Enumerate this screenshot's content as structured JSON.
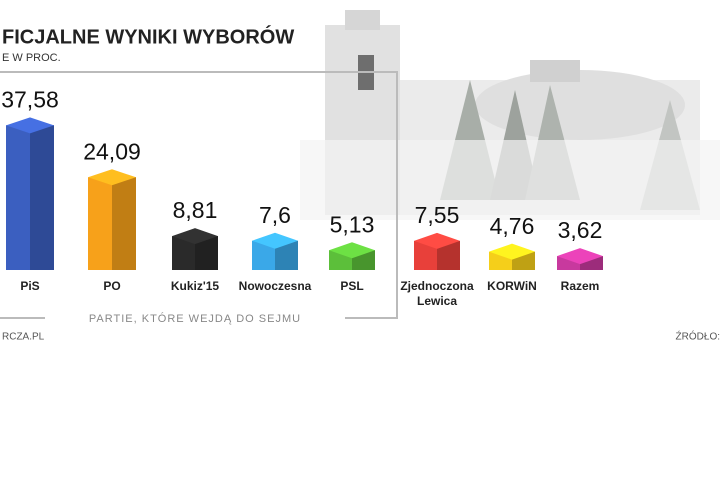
{
  "chart_data": {
    "type": "bar3d",
    "title": "FICJALNE WYNIKI WYBORÓW",
    "subtitle": "E W PROC.",
    "group_label": "PARTIE, KTÓRE WEJDĄ DO SEJMU",
    "source_left": "RCZA.PL",
    "source_right": "ŹRÓDŁO:",
    "categories": [
      "PiS",
      "PO",
      "Kukiz'15",
      "Nowoczesna",
      "PSL",
      "Zjednoczona Lewica",
      "KORWiN",
      "Razem"
    ],
    "values": [
      37.58,
      24.09,
      8.81,
      7.6,
      5.13,
      7.55,
      4.76,
      3.62
    ],
    "value_labels": [
      "37,58",
      "24,09",
      "8,81",
      "7,6",
      "5,13",
      "7,55",
      "4,76",
      "3,62"
    ],
    "colors": [
      "#3b5fc0",
      "#f7a11a",
      "#2a2a2a",
      "#3aa8e8",
      "#5cbf3a",
      "#e8403a",
      "#f5cf1a",
      "#c8399e"
    ]
  }
}
